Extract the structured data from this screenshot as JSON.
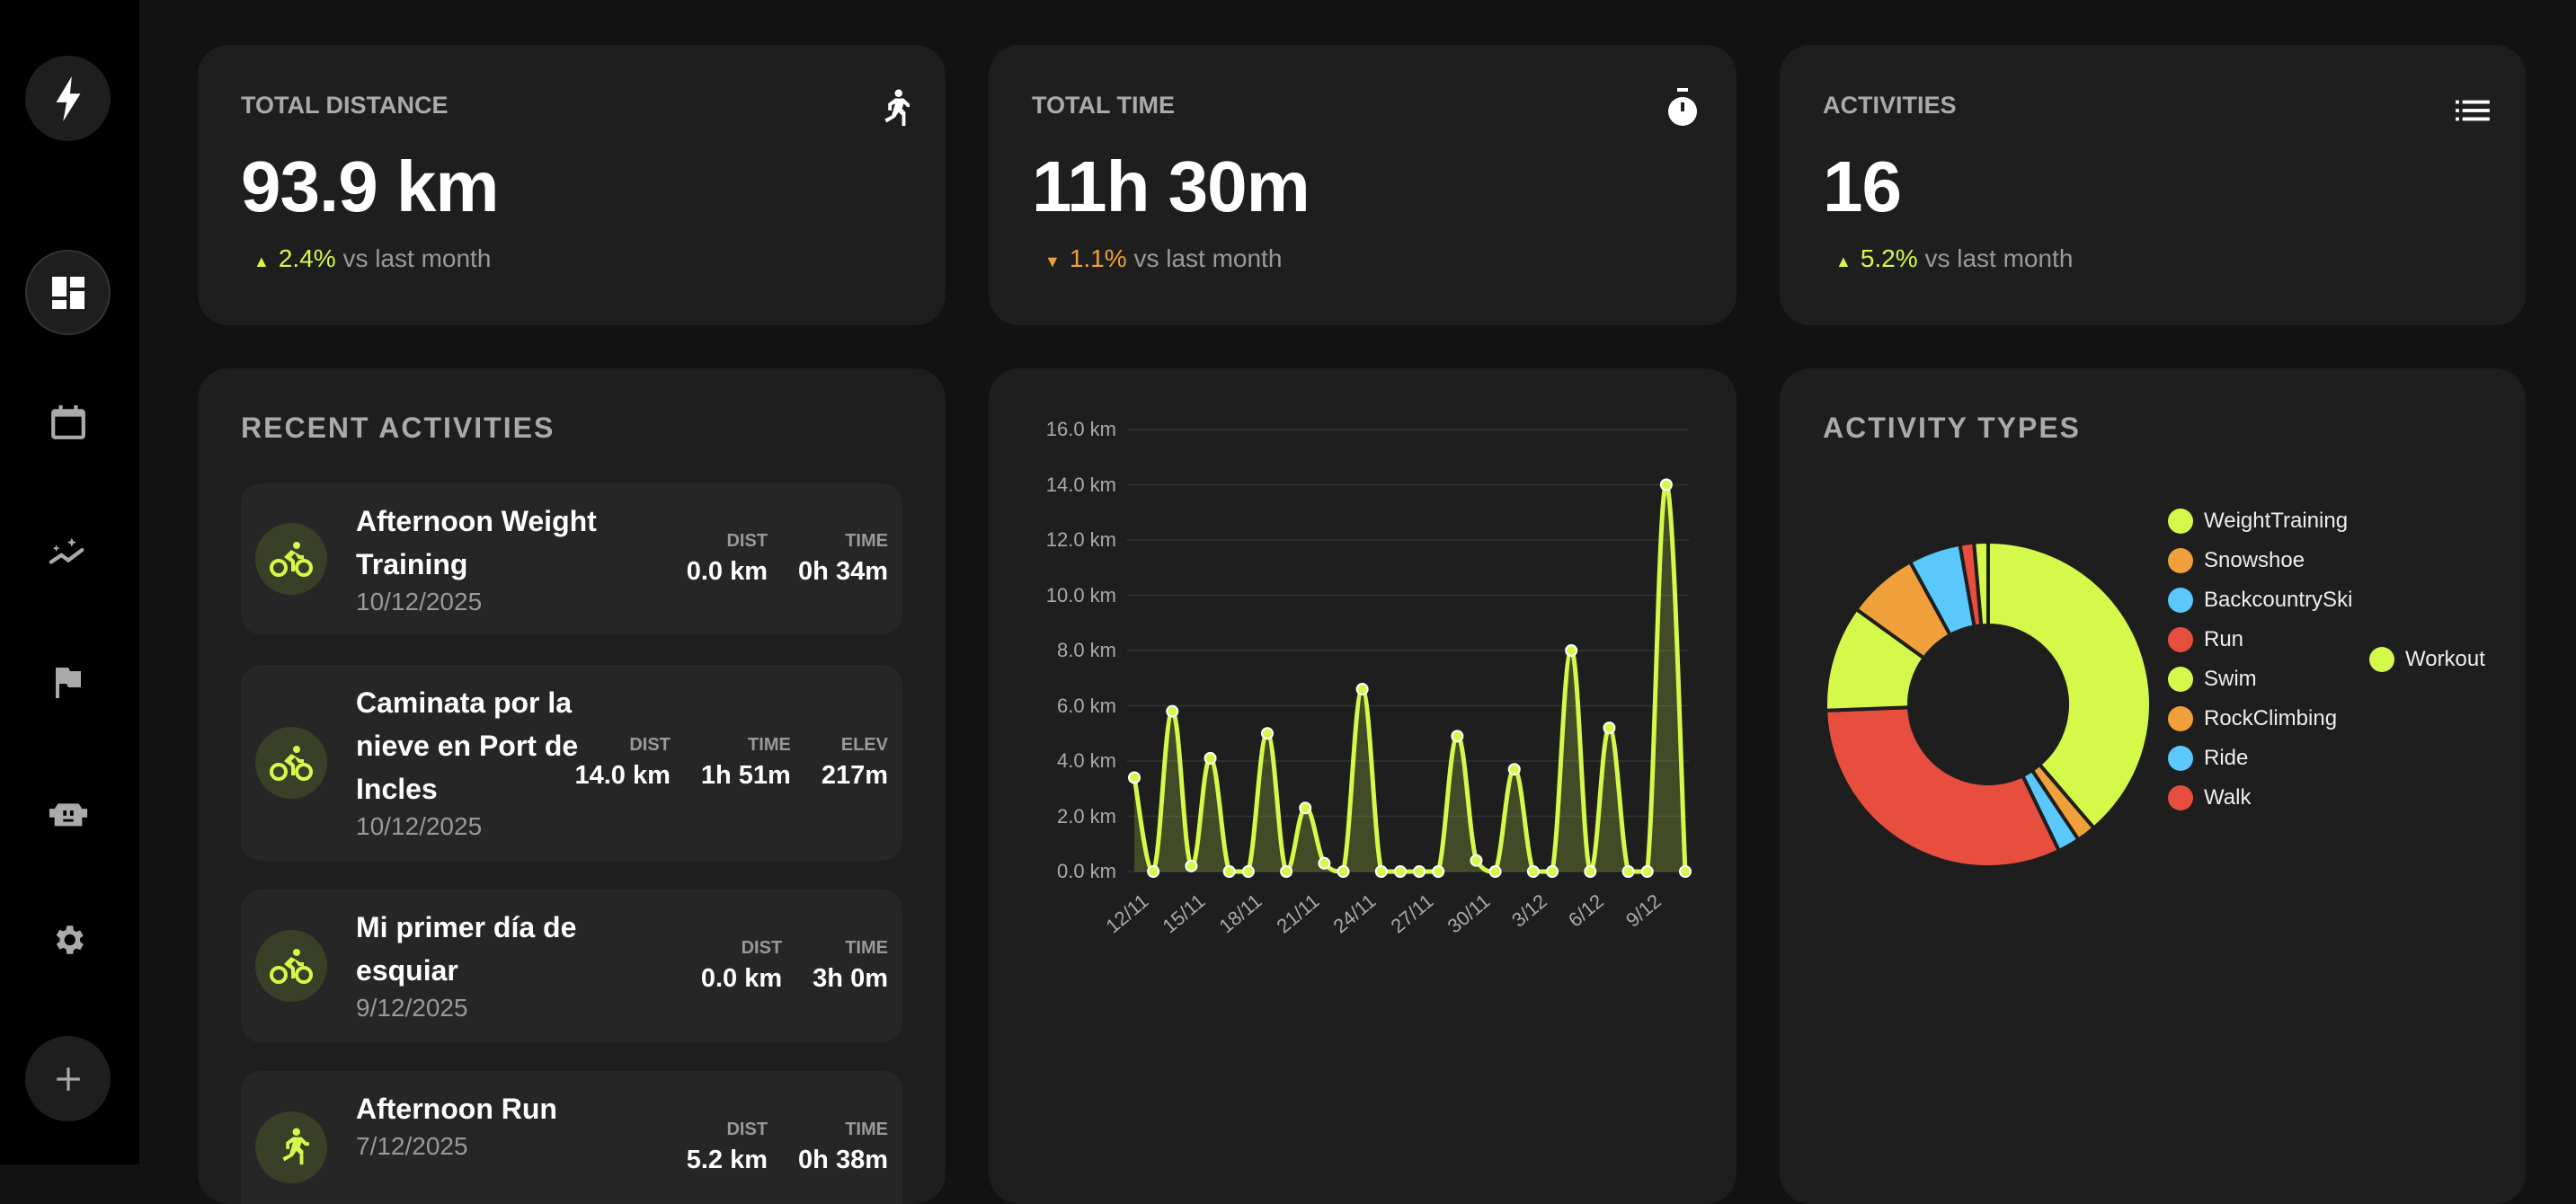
{
  "colors": {
    "accent": "#d4f94b",
    "orange": "#f0a03a",
    "blue": "#5ac8fa",
    "red": "#e84e3e"
  },
  "sidebar": {
    "items": [
      {
        "icon": "lightning-icon"
      },
      {
        "icon": "dashboard-icon"
      },
      {
        "icon": "calendar-icon"
      },
      {
        "icon": "insights-icon"
      },
      {
        "icon": "flag-icon"
      },
      {
        "icon": "robot-icon"
      },
      {
        "icon": "gear-icon"
      },
      {
        "icon": "plus-icon"
      }
    ]
  },
  "stats": [
    {
      "label": "TOTAL DISTANCE",
      "value": "93.9 km",
      "delta": "2.4%",
      "delta_dir": "up",
      "suffix": "vs last month",
      "icon": "run-icon"
    },
    {
      "label": "TOTAL TIME",
      "value": "11h 30m",
      "delta": "1.1%",
      "delta_dir": "down",
      "suffix": "vs last month",
      "icon": "stopwatch-icon"
    },
    {
      "label": "ACTIVITIES",
      "value": "16",
      "delta": "5.2%",
      "delta_dir": "up",
      "suffix": "vs last month",
      "icon": "list-icon"
    }
  ],
  "recent": {
    "title": "RECENT ACTIVITIES",
    "items": [
      {
        "name": "Afternoon Weight Training",
        "date": "10/12/2025",
        "icon": "bike-icon",
        "stats": [
          {
            "k": "DIST",
            "v": "0.0 km"
          },
          {
            "k": "TIME",
            "v": "0h 34m"
          }
        ]
      },
      {
        "name": "Caminata por la nieve en Port de Incles",
        "date": "10/12/2025",
        "icon": "bike-icon",
        "stats": [
          {
            "k": "DIST",
            "v": "14.0 km"
          },
          {
            "k": "TIME",
            "v": "1h 51m"
          },
          {
            "k": "ELEV",
            "v": "217m"
          }
        ]
      },
      {
        "name": "Mi primer día de esquiar",
        "date": "9/12/2025",
        "icon": "bike-icon",
        "stats": [
          {
            "k": "DIST",
            "v": "0.0 km"
          },
          {
            "k": "TIME",
            "v": "3h 0m"
          }
        ]
      },
      {
        "name": "Afternoon Run",
        "date": "7/12/2025",
        "icon": "run-icon",
        "stats": [
          {
            "k": "DIST",
            "v": "5.2 km"
          },
          {
            "k": "TIME",
            "v": "0h 38m"
          }
        ]
      }
    ]
  },
  "types_title": "ACTIVITY TYPES",
  "chart_data": [
    {
      "type": "area",
      "ylim": [
        0,
        16
      ],
      "grid": true,
      "yticks": [
        "0.0 km",
        "2.0 km",
        "4.0 km",
        "6.0 km",
        "8.0 km",
        "10.0 km",
        "12.0 km",
        "14.0 km",
        "16.0 km"
      ],
      "xticks": [
        "12/11",
        "15/11",
        "18/11",
        "21/11",
        "24/11",
        "27/11",
        "30/11",
        "3/12",
        "6/12",
        "9/12"
      ],
      "values": [
        3.4,
        0,
        5.8,
        0.2,
        4.1,
        0,
        0,
        5.0,
        0,
        2.3,
        0.3,
        0,
        6.6,
        0,
        0,
        0,
        0,
        4.9,
        0.4,
        0,
        3.7,
        0,
        0,
        8.0,
        0,
        5.2,
        0,
        0,
        14.0,
        0
      ]
    },
    {
      "type": "pie",
      "title": "ACTIVITY TYPES",
      "legend": "right",
      "categories": [
        "WeightTraining",
        "Snowshoe",
        "BackcountrySki",
        "Run",
        "Swim",
        "RockClimbing",
        "Ride",
        "Walk",
        "Workout"
      ],
      "values": [
        38.9,
        1.9,
        2.2,
        31.7,
        10.6,
        7.1,
        5.2,
        1.4,
        1.4
      ],
      "colors": [
        "#d4f94b",
        "#f0a03a",
        "#5ac8fa",
        "#e84e3e",
        "#d4f94b",
        "#f0a03a",
        "#5ac8fa",
        "#e84e3e",
        "#d4f94b"
      ]
    }
  ]
}
